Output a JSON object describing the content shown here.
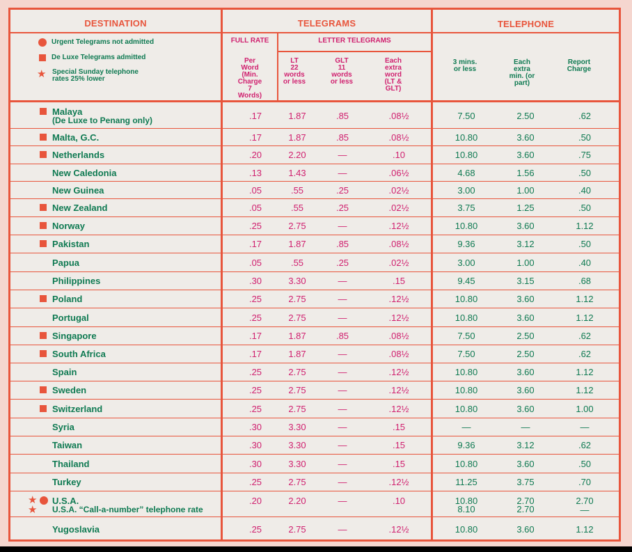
{
  "headers": {
    "destination": "DESTINATION",
    "telegrams": "TELEGRAMS",
    "telephone": "TELEPHONE",
    "full_rate": "FULL RATE",
    "letter_telegrams": "LETTER TELEGRAMS",
    "per_word": [
      "Per",
      "Word",
      "(Min.",
      "Charge",
      "7",
      "Words)"
    ],
    "lt": [
      "LT",
      "22",
      "words",
      "or less"
    ],
    "glt": [
      "GLT",
      "11",
      "words",
      "or less"
    ],
    "extra_word": [
      "Each",
      "extra",
      "word",
      "(LT &",
      "GLT)"
    ],
    "three_mins": [
      "3 mins.",
      "or less"
    ],
    "extra_min": [
      "Each",
      "extra",
      "min. (or",
      "part)"
    ],
    "report": [
      "Report",
      "Charge"
    ]
  },
  "legend": {
    "urgent": "Urgent Telegrams not admitted",
    "deluxe": "De Luxe Telegrams admitted",
    "sunday_1": "Special Sunday telephone",
    "sunday_2": "rates 25% lower"
  },
  "colors": {
    "border": "#e8553c",
    "telegram_text": "#d0206f",
    "telephone_text": "#0f7a52",
    "paper": "#efece8"
  },
  "rows": [
    {
      "name": "Malaya",
      "sub": "(De Luxe to Penang only)",
      "sym": "square",
      "full": ".17",
      "lt": "1.87",
      "glt": ".85",
      "extra": ".08½",
      "t3": "7.50",
      "tx": "2.50",
      "rep": ".62"
    },
    {
      "name": "Malta, G.C.",
      "sym": "square",
      "full": ".17",
      "lt": "1.87",
      "glt": ".85",
      "extra": ".08½",
      "t3": "10.80",
      "tx": "3.60",
      "rep": ".50"
    },
    {
      "name": "Netherlands",
      "sym": "square",
      "full": ".20",
      "lt": "2.20",
      "glt": "—",
      "extra": ".10",
      "t3": "10.80",
      "tx": "3.60",
      "rep": ".75"
    },
    {
      "name": "New Caledonia",
      "sym": "",
      "full": ".13",
      "lt": "1.43",
      "glt": "—",
      "extra": ".06½",
      "t3": "4.68",
      "tx": "1.56",
      "rep": ".50"
    },
    {
      "name": "New Guinea",
      "sym": "",
      "full": ".05",
      "lt": ".55",
      "glt": ".25",
      "extra": ".02½",
      "t3": "3.00",
      "tx": "1.00",
      "rep": ".40"
    },
    {
      "name": "New Zealand",
      "sym": "square",
      "full": ".05",
      "lt": ".55",
      "glt": ".25",
      "extra": ".02½",
      "t3": "3.75",
      "tx": "1.25",
      "rep": ".50"
    },
    {
      "name": "Norway",
      "sym": "square",
      "full": ".25",
      "lt": "2.75",
      "glt": "—",
      "extra": ".12½",
      "t3": "10.80",
      "tx": "3.60",
      "rep": "1.12"
    },
    {
      "name": "Pakistan",
      "sym": "square",
      "full": ".17",
      "lt": "1.87",
      "glt": ".85",
      "extra": ".08½",
      "t3": "9.36",
      "tx": "3.12",
      "rep": ".50"
    },
    {
      "name": "Papua",
      "sym": "",
      "full": ".05",
      "lt": ".55",
      "glt": ".25",
      "extra": ".02½",
      "t3": "3.00",
      "tx": "1.00",
      "rep": ".40"
    },
    {
      "name": "Philippines",
      "sym": "",
      "full": ".30",
      "lt": "3.30",
      "glt": "—",
      "extra": ".15",
      "t3": "9.45",
      "tx": "3.15",
      "rep": ".68"
    },
    {
      "name": "Poland",
      "sym": "square",
      "full": ".25",
      "lt": "2.75",
      "glt": "—",
      "extra": ".12½",
      "t3": "10.80",
      "tx": "3.60",
      "rep": "1.12"
    },
    {
      "name": "Portugal",
      "sym": "",
      "full": ".25",
      "lt": "2.75",
      "glt": "—",
      "extra": ".12½",
      "t3": "10.80",
      "tx": "3.60",
      "rep": "1.12"
    },
    {
      "name": "Singapore",
      "sym": "square",
      "full": ".17",
      "lt": "1.87",
      "glt": ".85",
      "extra": ".08½",
      "t3": "7.50",
      "tx": "2.50",
      "rep": ".62"
    },
    {
      "name": "South Africa",
      "sym": "square",
      "full": ".17",
      "lt": "1.87",
      "glt": "—",
      "extra": ".08½",
      "t3": "7.50",
      "tx": "2.50",
      "rep": ".62"
    },
    {
      "name": "Spain",
      "sym": "",
      "full": ".25",
      "lt": "2.75",
      "glt": "—",
      "extra": ".12½",
      "t3": "10.80",
      "tx": "3.60",
      "rep": "1.12"
    },
    {
      "name": "Sweden",
      "sym": "square",
      "full": ".25",
      "lt": "2.75",
      "glt": "—",
      "extra": ".12½",
      "t3": "10.80",
      "tx": "3.60",
      "rep": "1.12"
    },
    {
      "name": "Switzerland",
      "sym": "square",
      "full": ".25",
      "lt": "2.75",
      "glt": "—",
      "extra": ".12½",
      "t3": "10.80",
      "tx": "3.60",
      "rep": "1.00"
    },
    {
      "name": "Syria",
      "sym": "",
      "full": ".30",
      "lt": "3.30",
      "glt": "—",
      "extra": ".15",
      "t3": "—",
      "tx": "—",
      "rep": "—"
    },
    {
      "name": "Taiwan",
      "sym": "",
      "full": ".30",
      "lt": "3.30",
      "glt": "—",
      "extra": ".15",
      "t3": "9.36",
      "tx": "3.12",
      "rep": ".62"
    },
    {
      "name": "Thailand",
      "sym": "",
      "full": ".30",
      "lt": "3.30",
      "glt": "—",
      "extra": ".15",
      "t3": "10.80",
      "tx": "3.60",
      "rep": ".50"
    },
    {
      "name": "Turkey",
      "sym": "",
      "full": ".25",
      "lt": "2.75",
      "glt": "—",
      "extra": ".12½",
      "t3": "11.25",
      "tx": "3.75",
      "rep": ".70"
    },
    {
      "name": "U.S.A.",
      "sub": "U.S.A. “Call-a-number” telephone rate",
      "sym": "star-circle",
      "full": ".20",
      "lt": "2.20",
      "glt": "—",
      "extra": ".10",
      "t3": "10.80",
      "tx": "2.70",
      "rep": "2.70",
      "t3b": "8.10",
      "txb": "2.70",
      "repb": "—"
    },
    {
      "name": "Yugoslavia",
      "sym": "",
      "full": ".25",
      "lt": "2.75",
      "glt": "—",
      "extra": ".12½",
      "t3": "10.80",
      "tx": "3.60",
      "rep": "1.12"
    }
  ]
}
